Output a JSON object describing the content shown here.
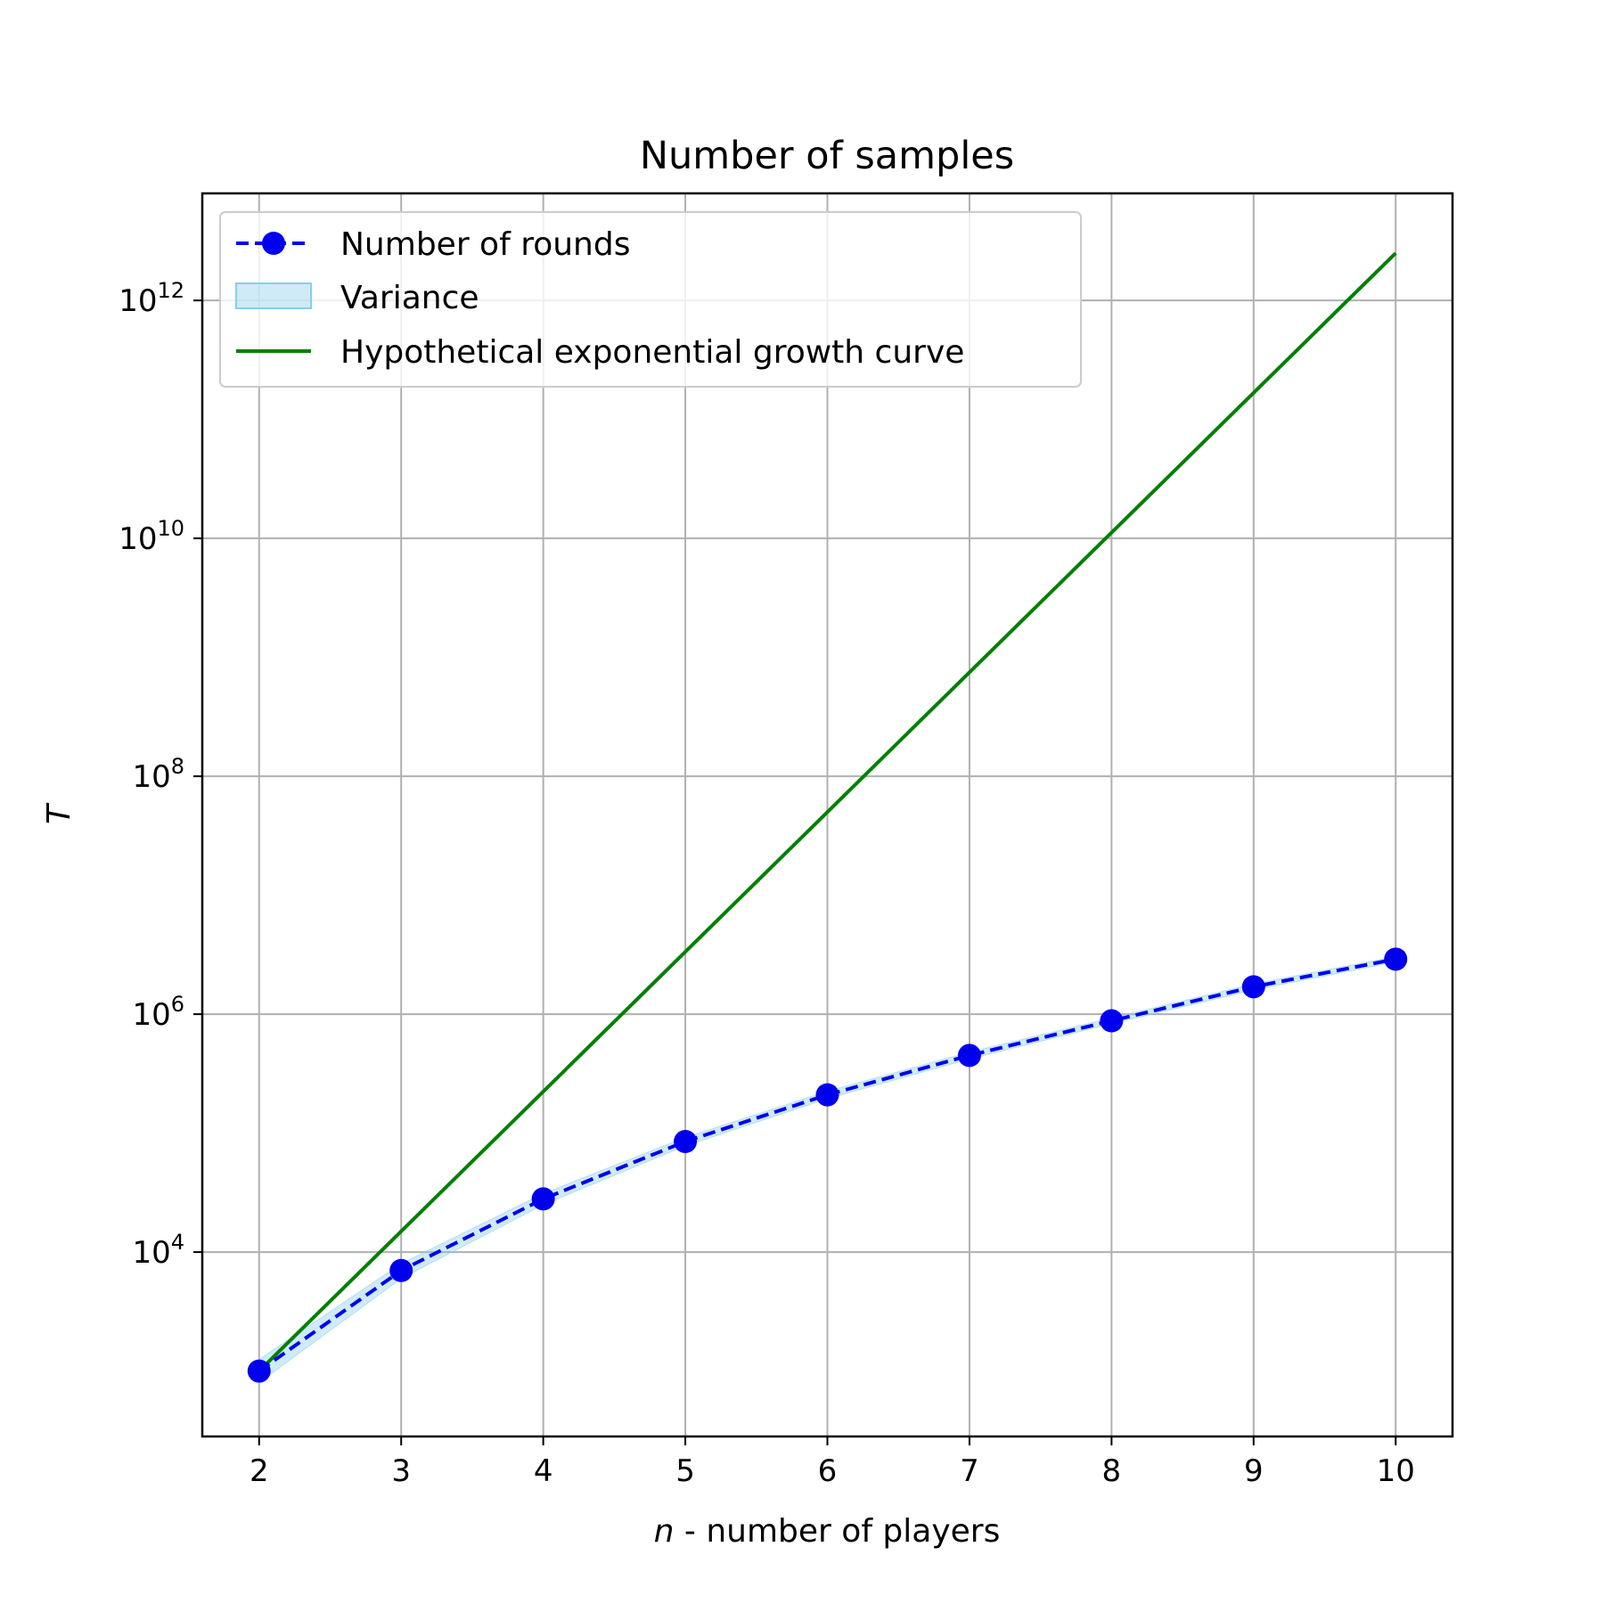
{
  "chart_data": {
    "type": "line",
    "title": "Number of samples",
    "xlabel": {
      "italic": "n",
      "rest": " - number of players"
    },
    "ylabel": "T",
    "y_scale": "log",
    "xlim": [
      1.6,
      10.4
    ],
    "ylim_log10": [
      2.45,
      12.9
    ],
    "x_ticks": [
      2,
      3,
      4,
      5,
      6,
      7,
      8,
      9,
      10
    ],
    "y_ticks": [
      {
        "base": "10",
        "exp": "4",
        "log10": 4
      },
      {
        "base": "10",
        "exp": "6",
        "log10": 6
      },
      {
        "base": "10",
        "exp": "8",
        "log10": 8
      },
      {
        "base": "10",
        "exp": "10",
        "log10": 10
      },
      {
        "base": "10",
        "exp": "12",
        "log10": 12
      }
    ],
    "grid": true,
    "legend_position": "top-left",
    "series": [
      {
        "name": "Number of rounds",
        "style": "dashed-with-markers",
        "color": "#0000ee",
        "x": [
          2,
          3,
          4,
          5,
          6,
          7,
          8,
          9,
          10
        ],
        "y": [
          1000,
          7000,
          28000,
          85000,
          210000,
          450000,
          880000,
          1700000,
          2900000
        ]
      },
      {
        "name": "Variance",
        "style": "band",
        "color": "#87ceeb",
        "x": [
          2,
          3,
          4,
          5,
          6,
          7,
          8,
          9,
          10
        ],
        "y_low": [
          800,
          6000,
          25000,
          78000,
          195000,
          420000,
          830000,
          1600000,
          2750000
        ],
        "y_high": [
          1250,
          8000,
          31000,
          92000,
          225000,
          480000,
          930000,
          1800000,
          3050000
        ]
      },
      {
        "name": "Hypothetical exponential growth curve",
        "style": "solid",
        "color": "#008000",
        "x": [
          2,
          10
        ],
        "y": [
          1000,
          2500000000000
        ]
      }
    ]
  }
}
